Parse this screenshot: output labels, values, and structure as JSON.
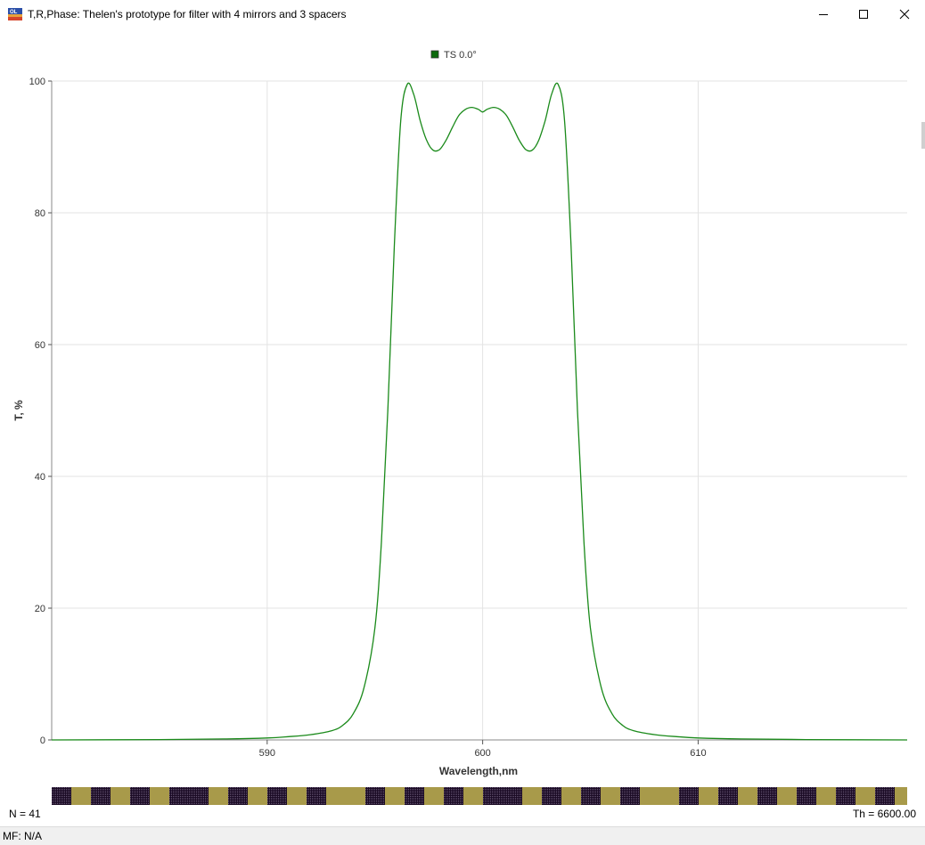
{
  "window": {
    "title": "T,R,Phase: Thelen's prototype for filter with 4 mirrors and 3 spacers",
    "icon": "app-logo-icon",
    "controls": [
      "minimize-icon",
      "maximize-icon",
      "close-icon"
    ]
  },
  "chart_data": {
    "type": "line",
    "title": "",
    "xlabel": "Wavelength,nm",
    "ylabel": "T, %",
    "xlim": [
      580.0,
      619.7
    ],
    "ylim": [
      0,
      100
    ],
    "xticks": [
      590,
      600,
      610
    ],
    "yticks": [
      0,
      20,
      40,
      60,
      80,
      100
    ],
    "grid": true,
    "legend_placement": "top-center",
    "series": [
      {
        "name": "TS 0.0°",
        "color": "#1a8a1a",
        "x": [
          580,
          585,
          588,
          590,
          591,
          592,
          593,
          593.5,
          594,
          594.5,
          595,
          595.3,
          595.6,
          595.9,
          596.2,
          596.5,
          596.8,
          597.1,
          597.4,
          597.7,
          598,
          598.3,
          598.6,
          598.9,
          599.2,
          599.5,
          599.8,
          600,
          600.2,
          600.5,
          600.8,
          601.1,
          601.4,
          601.7,
          602,
          602.3,
          602.6,
          602.9,
          603.2,
          603.5,
          603.8,
          604.1,
          604.4,
          604.7,
          605,
          605.5,
          606,
          606.5,
          607,
          608,
          609,
          610,
          612,
          615,
          619.7
        ],
        "y": [
          0,
          0.05,
          0.15,
          0.3,
          0.5,
          0.8,
          1.4,
          2.2,
          4,
          8,
          17,
          30,
          50,
          75,
          94,
          99.5,
          98,
          94,
          91,
          89.5,
          89.6,
          91,
          93,
          94.8,
          95.7,
          96,
          95.7,
          95.3,
          95.7,
          96,
          95.7,
          94.8,
          93,
          91,
          89.6,
          89.5,
          91,
          94,
          98,
          99.5,
          94,
          75,
          50,
          30,
          17,
          8,
          4,
          2.2,
          1.4,
          0.8,
          0.5,
          0.3,
          0.15,
          0.05,
          0
        ]
      }
    ]
  },
  "footer": {
    "n_label": "N = 41",
    "th_label": "Th = 6600.00",
    "status": "MF: N/A"
  }
}
